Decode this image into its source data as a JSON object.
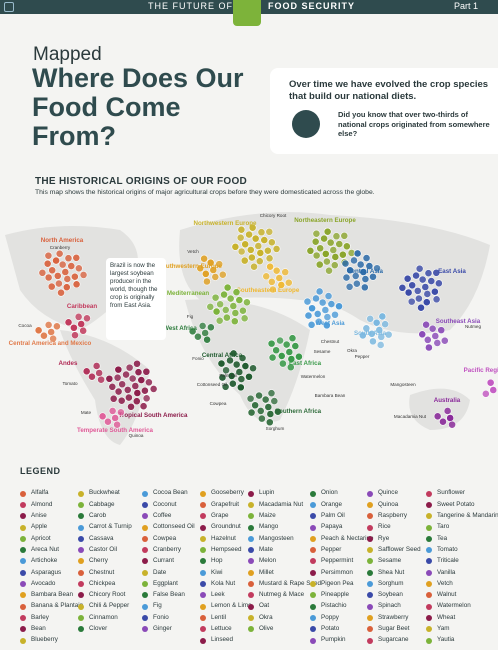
{
  "header": {
    "left": "THE FUTURE OF",
    "right": "FOOD SECURITY",
    "part": "Part 1"
  },
  "title": {
    "kicker": "Mapped",
    "main": "Where Does Our Food Come From?"
  },
  "intro": {
    "lead": "Over time we have evolved the crop species that build our national diets.",
    "question": "Did you know that over two-thirds of national crops originated from somewhere else?"
  },
  "map": {
    "title": "THE HISTORICAL ORIGINS OF OUR FOOD",
    "subtitle": "This map shows the historical origins of major agricultural crops before they were domesticated across the globe.",
    "annotation": "Brazil is now the largest soybean producer in the world, though the crop is originally from East Asia.",
    "regions": [
      {
        "name": "North America",
        "color": "#d9603b"
      },
      {
        "name": "Caribbean",
        "color": "#c23b5e"
      },
      {
        "name": "Central America and Mexico",
        "color": "#e07a4a"
      },
      {
        "name": "Andes",
        "color": "#b02a55"
      },
      {
        "name": "Tropical South America",
        "color": "#8c1c4a"
      },
      {
        "name": "Temperate South America",
        "color": "#e05a98"
      },
      {
        "name": "Northwestern Europe",
        "color": "#c8b22a"
      },
      {
        "name": "Northeastern Europe",
        "color": "#8aa52a"
      },
      {
        "name": "Southwestern Europe",
        "color": "#e0a020"
      },
      {
        "name": "Southeastern Europe",
        "color": "#f0b830"
      },
      {
        "name": "Mediterranean",
        "color": "#7cb33a"
      },
      {
        "name": "West Africa",
        "color": "#2a7a3a"
      },
      {
        "name": "Central Africa",
        "color": "#1f5a2e"
      },
      {
        "name": "East Africa",
        "color": "#3a9a4a"
      },
      {
        "name": "Southern Africa",
        "color": "#2e6b3a"
      },
      {
        "name": "West Asia",
        "color": "#4a9ad8"
      },
      {
        "name": "Central Asia",
        "color": "#2a6aa8"
      },
      {
        "name": "South Asia",
        "color": "#7ab8e0"
      },
      {
        "name": "East Asia",
        "color": "#3a4aa8"
      },
      {
        "name": "Southeast Asia",
        "color": "#8a4ab8"
      },
      {
        "name": "Pacific Region",
        "color": "#c050c0"
      },
      {
        "name": "Australia",
        "color": "#8a2a9a"
      }
    ],
    "crop_labels": [
      "Cranberry",
      "Chicory Root",
      "Vetch",
      "Fig",
      "Fonio",
      "Palm Oil",
      "Cottonseed Oil",
      "Cowpea",
      "Watermelon",
      "Bambara Bean",
      "Sorghum",
      "Sesame",
      "Chestnut",
      "Okra",
      "Pepper",
      "Nutmeg",
      "Mangosteen",
      "Macadamia Nut",
      "Tomato",
      "Mate",
      "Quinoa",
      "Cocoa"
    ]
  },
  "legend": {
    "title": "LEGEND",
    "columns": [
      [
        "Alfalfa",
        "Almond",
        "Anise",
        "Apple",
        "Apricot",
        "Areca Nut",
        "Artichoke",
        "Asparagus",
        "Avocado",
        "Bambara Bean",
        "Banana & Plantain",
        "Barley",
        "Bean",
        "Blueberry"
      ],
      [
        "Buckwheat",
        "Cabbage",
        "Carob",
        "Carrot & Turnip",
        "Cassava",
        "Castor Oil",
        "Cherry",
        "Chestnut",
        "Chickpea",
        "Chicory Root",
        "Chili & Pepper",
        "Cinnamon",
        "Clover"
      ],
      [
        "Cocoa Bean",
        "Coconut",
        "Coffee",
        "Cottonseed Oil",
        "Cowpea",
        "Cranberry",
        "Currant",
        "Date",
        "Eggplant",
        "False Bean",
        "Fig",
        "Fonio",
        "Ginger"
      ],
      [
        "Gooseberry",
        "Grapefruit",
        "Grape",
        "Groundnut",
        "Hazelnut",
        "Hempseed",
        "Hop",
        "Kiwi",
        "Kola Nut",
        "Leek",
        "Lemon & Lime",
        "Lentil",
        "Lettuce",
        "Linseed"
      ],
      [
        "Lupin",
        "Macadamia Nut",
        "Maize",
        "Mango",
        "Mangosteen",
        "Mate",
        "Melon",
        "Millet",
        "Mustard & Rape Seed",
        "Nutmeg & Mace",
        "Oat",
        "Okra",
        "Olive"
      ],
      [
        "Onion",
        "Orange",
        "Palm Oil",
        "Papaya",
        "Peach & Nectarine",
        "Pepper",
        "Peppermint",
        "Persimmon",
        "Pigeon Pea",
        "Pineapple",
        "Pistachio",
        "Poppy",
        "Potato",
        "Pumpkin"
      ],
      [
        "Quince",
        "Quinoa",
        "Raspberry",
        "Rice",
        "Rye",
        "Safflower Seed",
        "Sesame",
        "Shea Nut",
        "Sorghum",
        "Soybean",
        "Spinach",
        "Strawberry",
        "Sugar Beet",
        "Sugarcane"
      ],
      [
        "Sunflower",
        "Sweet Potato",
        "Tangerine & Mandarin",
        "Taro",
        "Tea",
        "Tomato",
        "Triticale",
        "Vanilla",
        "Vetch",
        "Walnut",
        "Watermelon",
        "Wheat",
        "Yam",
        "Yautia"
      ]
    ]
  }
}
